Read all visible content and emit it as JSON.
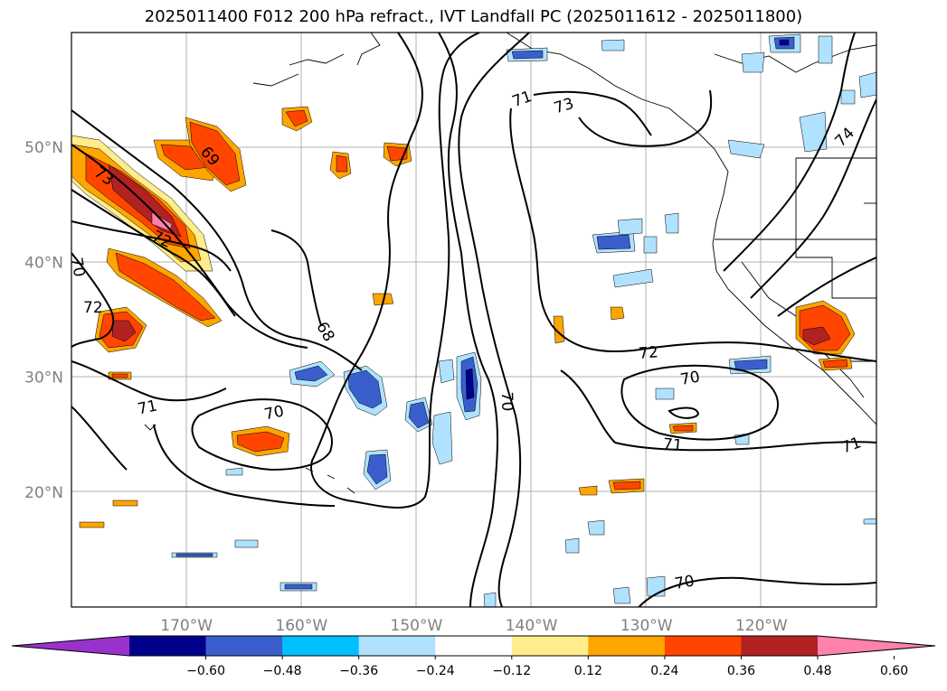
{
  "title": "2025011400 F012 200 hPa refract., IVT Landfall PC (2025011612 - 2025011800)",
  "map": {
    "lon_ticks": [
      {
        "label": "170°W",
        "value": -170
      },
      {
        "label": "160°W",
        "value": -160
      },
      {
        "label": "150°W",
        "value": -150
      },
      {
        "label": "140°W",
        "value": -140
      },
      {
        "label": "130°W",
        "value": -130
      },
      {
        "label": "120°W",
        "value": -120
      }
    ],
    "lat_ticks": [
      {
        "label": "50°N",
        "value": 50
      },
      {
        "label": "40°N",
        "value": 40
      },
      {
        "label": "30°N",
        "value": 30
      },
      {
        "label": "20°N",
        "value": 20
      }
    ],
    "extent": {
      "lon": [
        -180,
        -110
      ],
      "lat": [
        10,
        60
      ]
    },
    "contour_labels": [
      "71",
      "73",
      "74",
      "69",
      "73",
      "72",
      "72",
      "68",
      "71",
      "70",
      "70",
      "71",
      "72",
      "70",
      "71",
      "70",
      "70"
    ]
  },
  "colorbar": {
    "colors": [
      "#9932cc",
      "#00008b",
      "#3a5fcd",
      "#00bfff",
      "#b0e2ff",
      "#ffffff",
      "#ffec8b",
      "#ffa500",
      "#ff4500",
      "#b22222",
      "#ff82ab"
    ],
    "tick_labels": [
      "−0.60",
      "−0.48",
      "−0.36",
      "−0.24",
      "−0.12",
      "0.12",
      "0.24",
      "0.36",
      "0.48",
      "0.60"
    ]
  }
}
